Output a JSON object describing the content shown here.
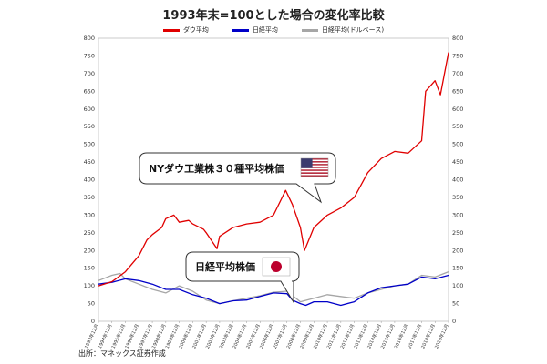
{
  "chart_data": {
    "type": "line",
    "title": "1993年末=100とした場合の変化率比較",
    "ylim": [
      0,
      800
    ],
    "y_ticks": [
      0,
      50,
      100,
      150,
      200,
      250,
      300,
      350,
      400,
      450,
      500,
      550,
      600,
      650,
      700,
      750,
      800
    ],
    "x_tick_labels": [
      "1993年12月",
      "1994年12月",
      "1995年12月",
      "1996年12月",
      "1997年12月",
      "1998年12月",
      "1999年12月",
      "2000年12月",
      "2001年12月",
      "2002年12月",
      "2003年12月",
      "2004年12月",
      "2005年12月",
      "2006年12月",
      "2007年12月",
      "2008年12月",
      "2009年12月",
      "2010年12月",
      "2011年12月",
      "2012年12月",
      "2013年12月",
      "2014年12月",
      "2015年12月",
      "2016年12月",
      "2017年12月",
      "2018年12月",
      "2019年12月"
    ],
    "legend_position": "top",
    "grid": false,
    "series": [
      {
        "name": "ダウ平均",
        "color": "#e00000",
        "x": [
          1993.9,
          1994.9,
          1995.9,
          1996.9,
          1997.5,
          1997.9,
          1998.6,
          1998.9,
          1999.5,
          1999.9,
          2000.6,
          2000.9,
          2001.7,
          2001.9,
          2002.7,
          2002.9,
          2003.9,
          2004.9,
          2005.9,
          2006.9,
          2007.8,
          2008.3,
          2008.9,
          2009.2,
          2009.9,
          2010.9,
          2011.9,
          2012.9,
          2013.9,
          2014.9,
          2015.9,
          2016.9,
          2017.9,
          2018.2,
          2018.9,
          2019.3,
          2019.9
        ],
        "y": [
          100,
          112,
          140,
          185,
          230,
          245,
          265,
          290,
          300,
          280,
          285,
          275,
          260,
          250,
          205,
          240,
          265,
          275,
          280,
          300,
          370,
          330,
          265,
          200,
          265,
          300,
          320,
          350,
          420,
          460,
          480,
          475,
          510,
          650,
          680,
          640,
          760
        ]
      },
      {
        "name": "日経平均",
        "color": "#0000c8",
        "x": [
          1993.9,
          1994.9,
          1995.9,
          1996.9,
          1997.9,
          1998.9,
          1999.9,
          2000.9,
          2001.9,
          2002.9,
          2003.9,
          2004.9,
          2005.9,
          2006.9,
          2007.9,
          2008.3,
          2008.9,
          2009.3,
          2009.9,
          2010.9,
          2011.9,
          2012.9,
          2013.9,
          2014.9,
          2015.9,
          2016.9,
          2017.9,
          2018.9,
          2019.9
        ],
        "y": [
          105,
          110,
          120,
          115,
          105,
          90,
          90,
          75,
          65,
          50,
          58,
          60,
          70,
          80,
          78,
          60,
          50,
          45,
          55,
          55,
          45,
          55,
          80,
          95,
          100,
          105,
          125,
          120,
          130
        ]
      },
      {
        "name": "日経平均(ドルベース)",
        "color": "#a6a6a6",
        "x": [
          1993.9,
          1994.9,
          1995.5,
          1995.9,
          1996.9,
          1997.9,
          1998.9,
          1999.9,
          2000.9,
          2001.9,
          2002.9,
          2003.9,
          2004.9,
          2005.9,
          2006.9,
          2007.9,
          2008.9,
          2009.9,
          2010.9,
          2011.9,
          2012.9,
          2013.9,
          2014.9,
          2015.9,
          2016.9,
          2017.9,
          2018.9,
          2019.9
        ],
        "y": [
          115,
          130,
          135,
          120,
          105,
          90,
          80,
          100,
          85,
          60,
          50,
          58,
          65,
          72,
          82,
          85,
          55,
          65,
          75,
          70,
          65,
          80,
          90,
          100,
          105,
          130,
          125,
          140
        ]
      }
    ],
    "annotations": [
      {
        "text": "NYダウ工業株３０種平均株価",
        "flag": "us-flag"
      },
      {
        "text": "日経平均株価",
        "flag": "japan-flag"
      }
    ]
  },
  "source_note": "出所：マネックス証券作成"
}
